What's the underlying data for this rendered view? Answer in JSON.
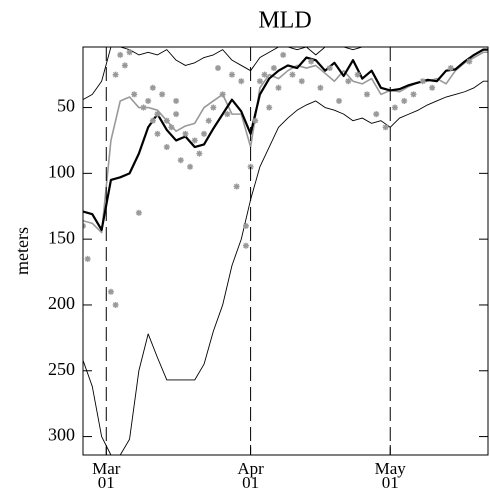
{
  "chart_data": {
    "type": "line",
    "title": "MLD",
    "y_label": "meters",
    "x": [
      55,
      57,
      59,
      61,
      63,
      65,
      67,
      69,
      71,
      73,
      75,
      77,
      79,
      81,
      83,
      85,
      87,
      89,
      91,
      93,
      95,
      97,
      99,
      101,
      103,
      105,
      107,
      109,
      111,
      113,
      115,
      117,
      119,
      121,
      123,
      125,
      127,
      129,
      131,
      133,
      135,
      137,
      139,
      141,
      142
    ],
    "series": [
      {
        "color": "#000000",
        "line_width": 0.9,
        "values": [
          44,
          40,
          30,
          4,
          4,
          6,
          10,
          8,
          10,
          6,
          14,
          18,
          16,
          12,
          10,
          6,
          14,
          18,
          22,
          12,
          8,
          4,
          4,
          6,
          4,
          10,
          4,
          4,
          4,
          6,
          4,
          4,
          4,
          4,
          4,
          4,
          4,
          4,
          4,
          4,
          4,
          4,
          4,
          4,
          4
        ]
      },
      {
        "color": "#000000",
        "line_width": 0.9,
        "values": [
          242,
          262,
          300,
          314,
          314,
          302,
          250,
          222,
          240,
          257,
          257,
          257,
          257,
          245,
          220,
          200,
          170,
          150,
          120,
          95,
          80,
          65,
          58,
          52,
          48,
          45,
          50,
          52,
          55,
          60,
          58,
          62,
          60,
          65,
          58,
          55,
          52,
          48,
          45,
          42,
          40,
          38,
          35,
          30,
          30
        ]
      },
      {
        "color": "#999999",
        "line_width": 1.6,
        "values": [
          136,
          138,
          145,
          75,
          45,
          42,
          50,
          50,
          52,
          60,
          68,
          64,
          62,
          50,
          45,
          40,
          55,
          55,
          80,
          35,
          25,
          28,
          22,
          18,
          20,
          18,
          24,
          30,
          22,
          30,
          32,
          28,
          40,
          37,
          38,
          34,
          31,
          30,
          28,
          32,
          22,
          16,
          12,
          8,
          8
        ]
      },
      {
        "color": "#000000",
        "line_width": 2.2,
        "values": [
          129,
          131,
          143,
          105,
          103,
          100,
          85,
          65,
          55,
          67,
          75,
          72,
          80,
          78,
          66,
          55,
          44,
          53,
          70,
          40,
          28,
          22,
          18,
          20,
          12,
          14,
          22,
          16,
          26,
          14,
          28,
          22,
          35,
          37,
          36,
          33,
          31,
          29,
          30,
          22,
          21,
          15,
          10,
          6,
          6
        ]
      }
    ],
    "scatter": {
      "color": "#999999",
      "x": [
        55,
        56,
        61,
        62,
        62,
        63,
        64,
        65,
        66,
        67,
        68,
        69,
        70,
        70,
        71,
        71,
        72,
        73,
        73,
        74,
        75,
        75,
        76,
        77,
        78,
        79,
        80,
        81,
        82,
        83,
        84,
        85,
        86,
        87,
        88,
        89,
        90,
        90,
        91,
        92,
        93,
        94,
        95,
        96,
        97,
        98,
        100,
        102,
        104,
        106,
        108,
        110,
        112,
        114,
        116,
        118,
        120,
        122,
        124,
        126,
        128,
        130,
        134,
        138
      ],
      "y": [
        140,
        165,
        190,
        200,
        25,
        10,
        18,
        8,
        40,
        130,
        50,
        45,
        60,
        35,
        70,
        55,
        40,
        80,
        60,
        65,
        55,
        45,
        90,
        70,
        95,
        75,
        85,
        70,
        60,
        50,
        20,
        40,
        55,
        25,
        110,
        30,
        155,
        140,
        95,
        60,
        30,
        25,
        50,
        20,
        35,
        10,
        25,
        30,
        15,
        35,
        20,
        45,
        30,
        25,
        40,
        55,
        65,
        50,
        45,
        40,
        30,
        35,
        20,
        15
      ]
    },
    "xlim": [
      55,
      142
    ],
    "ylim": [
      314,
      4
    ],
    "xticks": [
      {
        "value": 60,
        "label": "Mar 01"
      },
      {
        "value": 91,
        "label": "Apr 01"
      },
      {
        "value": 121,
        "label": "May 01"
      }
    ],
    "yticks": [
      50,
      100,
      150,
      200,
      250,
      300
    ],
    "xgrid": true
  }
}
